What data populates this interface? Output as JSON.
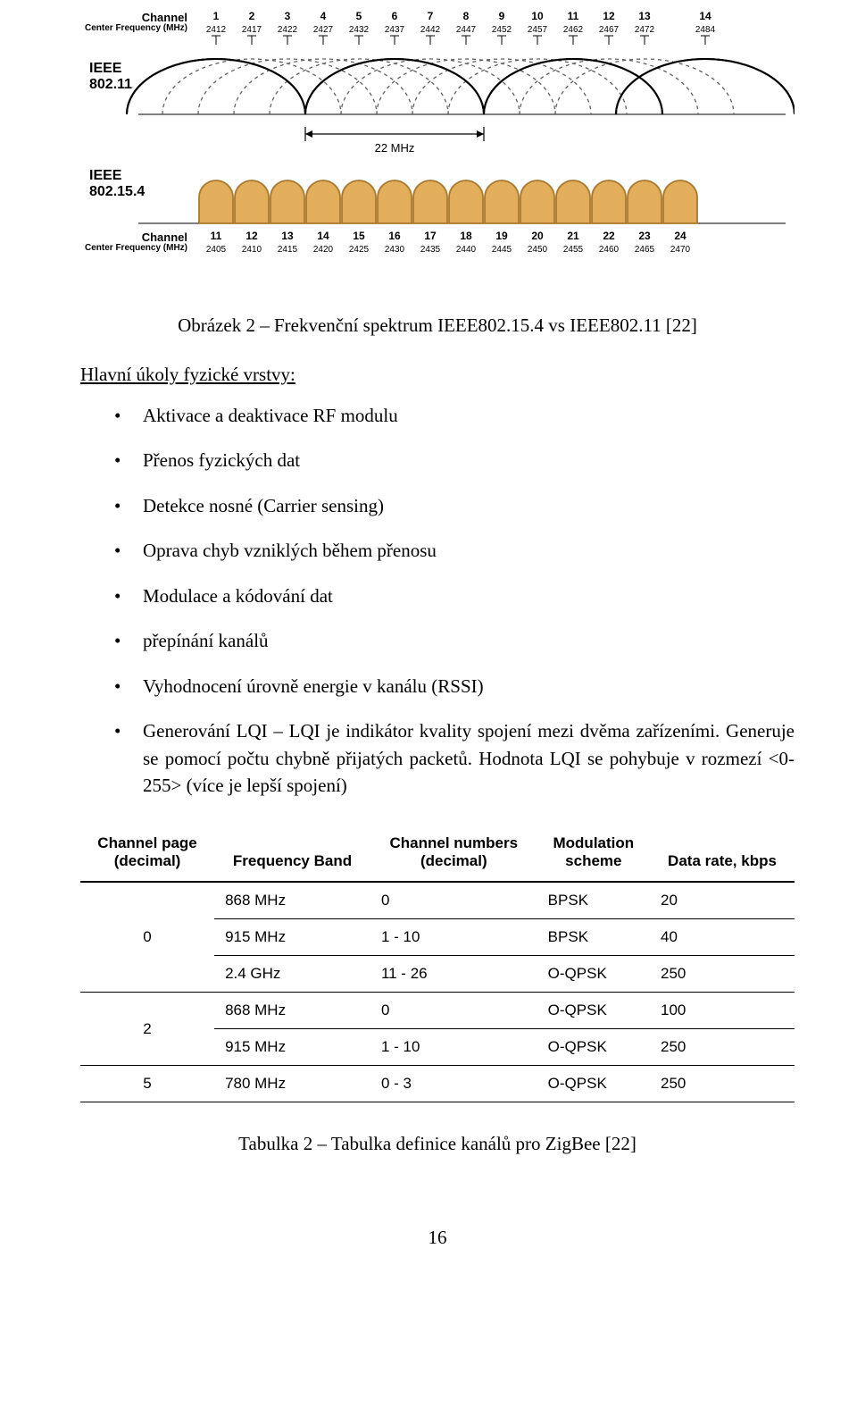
{
  "figure1": {
    "top_labels": {
      "channel": "Channel",
      "center_freq": "Center Frequency (MHz)",
      "ieee80211": "IEEE\n802.11",
      "ieee802154": "IEEE\n802.15.4"
    },
    "wifi": {
      "channels": [
        1,
        2,
        3,
        4,
        5,
        6,
        7,
        8,
        9,
        10,
        11,
        12,
        13,
        14
      ],
      "freqs": [
        2412,
        2417,
        2422,
        2427,
        2432,
        2437,
        2442,
        2447,
        2452,
        2457,
        2462,
        2467,
        2472,
        2484
      ],
      "solid_channels": [
        1,
        6,
        11,
        14
      ],
      "colors": {
        "solid": "#000000",
        "dash": "#606060"
      },
      "dim_label": "22 MHz"
    },
    "zb": {
      "channels": [
        11,
        12,
        13,
        14,
        15,
        16,
        17,
        18,
        19,
        20,
        21,
        22,
        23,
        24
      ],
      "freqs": [
        2405,
        2410,
        2415,
        2420,
        2425,
        2430,
        2435,
        2440,
        2445,
        2450,
        2455,
        2460,
        2465,
        2470
      ],
      "fill": "#e3ae5b",
      "stroke": "#a87a2c"
    },
    "caption": "Obrázek 2 – Frekvenční spektrum IEEE802.15.4 vs IEEE802.11 [22]"
  },
  "section_heading": "Hlavní úkoly fyzické vrstvy:",
  "bullets": [
    "Aktivace a deaktivace RF modulu",
    "Přenos fyzických dat",
    "Detekce nosné (Carrier sensing)",
    "Oprava chyb vzniklých během přenosu",
    "Modulace a kódování dat",
    "přepínání kanálů",
    "Vyhodnocení úrovně energie v kanálu (RSSI)",
    "Generování LQI – LQI je indikátor kvality spojení mezi dvěma zařízeními. Generuje se pomocí počtu chybně přijatých packetů. Hodnota LQI se pohybuje v rozmezí <0-255> (více je lepší spojení)"
  ],
  "table": {
    "columns": [
      "Channel page\n(decimal)",
      "Frequency Band",
      "Channel numbers\n(decimal)",
      "Modulation\nscheme",
      "Data rate, kbps"
    ],
    "rows": [
      {
        "page": "0",
        "band": "868 MHz",
        "nums": "0",
        "mod": "BPSK",
        "rate": "20",
        "group": 0
      },
      {
        "page": "",
        "band": "915 MHz",
        "nums": "1 - 10",
        "mod": "BPSK",
        "rate": "40",
        "group": 0
      },
      {
        "page": "",
        "band": "2.4 GHz",
        "nums": "11 - 26",
        "mod": "O-QPSK",
        "rate": "250",
        "group": 0,
        "end": true
      },
      {
        "page": "2",
        "band": "868 MHz",
        "nums": "0",
        "mod": "O-QPSK",
        "rate": "100",
        "group": 1
      },
      {
        "page": "",
        "band": "915 MHz",
        "nums": "1 - 10",
        "mod": "O-QPSK",
        "rate": "250",
        "group": 1,
        "end": true
      },
      {
        "page": "5",
        "band": "780 MHz",
        "nums": "0 - 3",
        "mod": "O-QPSK",
        "rate": "250",
        "group": 2,
        "end": true
      }
    ],
    "caption": "Tabulka 2 – Tabulka definice kanálů pro ZigBee [22]"
  },
  "page_number": "16"
}
